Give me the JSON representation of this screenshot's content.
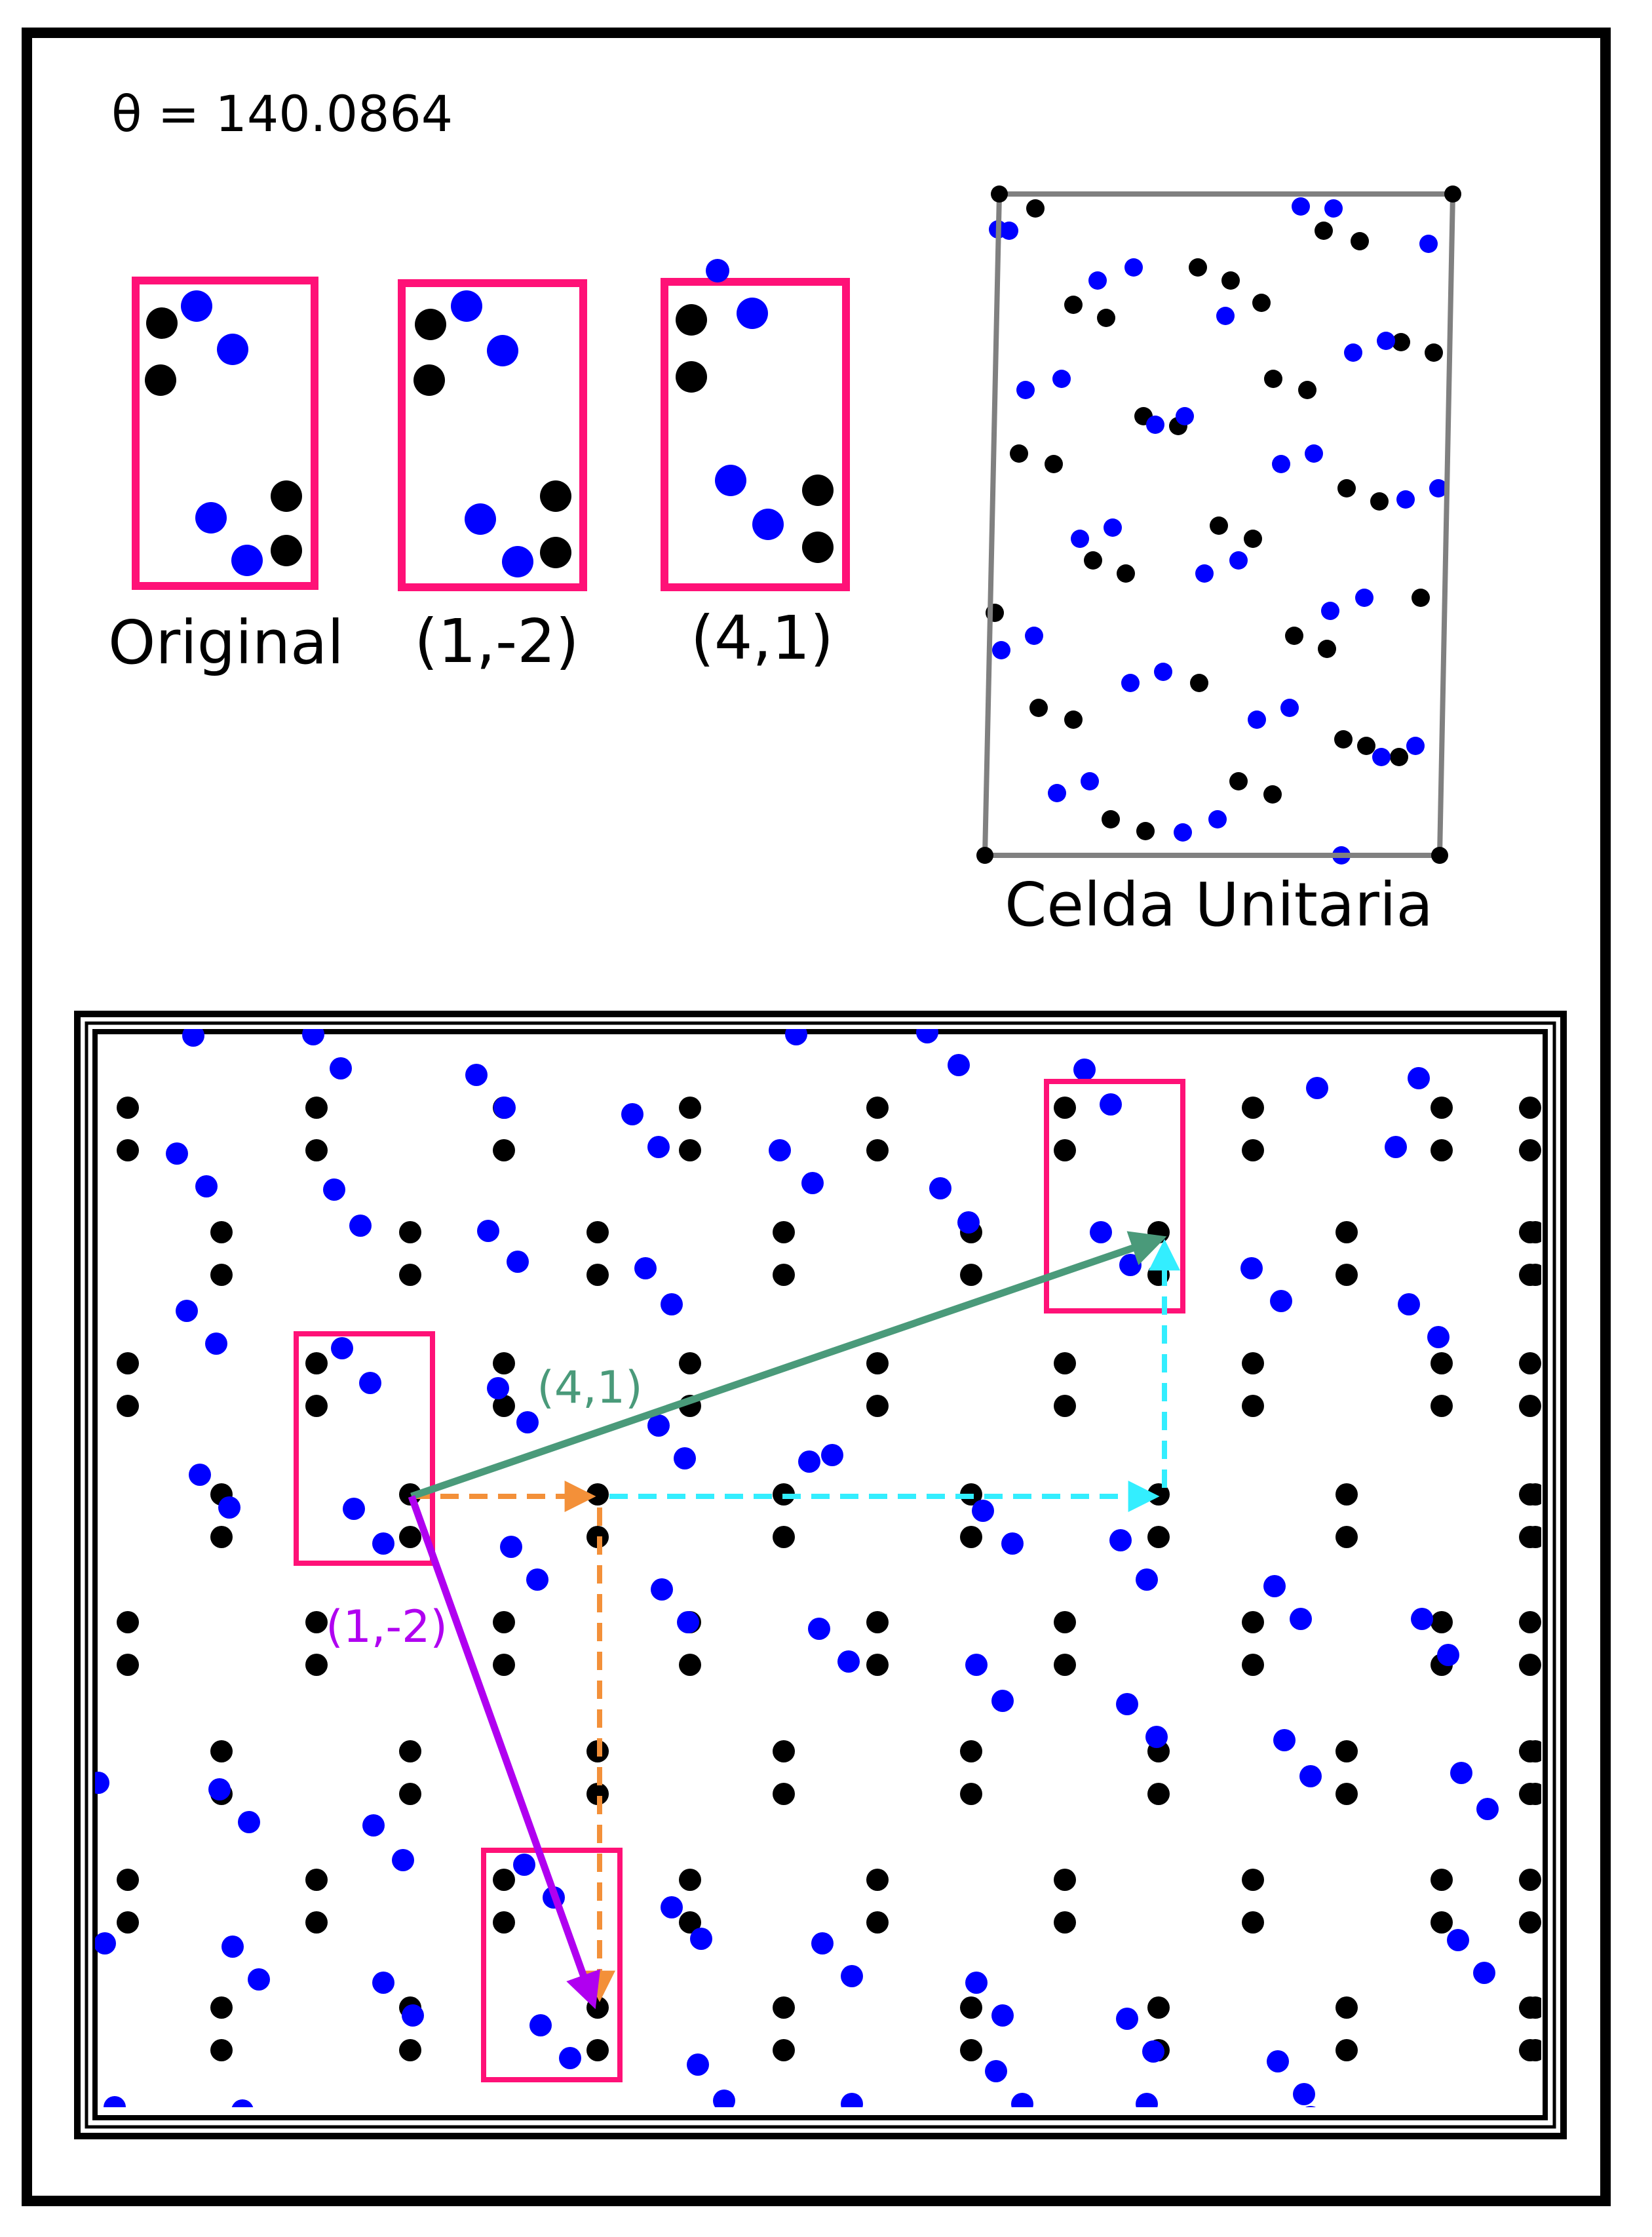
{
  "theta": "θ = 140.0864",
  "motifs": {
    "original": "Original",
    "v1": "(1,-2)",
    "v2": "(4,1)"
  },
  "unit_cell": {
    "label": "Celda Unitaria"
  },
  "lattice": {
    "vector_a": "(4,1)",
    "vector_b": "(1,-2)"
  },
  "colors": {
    "black_atom": "#000000",
    "blue_atom": "#0000ff",
    "motif_box": "#ff1177",
    "vector_a": "#4a9a7a",
    "vector_b": "#b000f0",
    "steps_short": "#f39039",
    "steps_long": "#33eeff",
    "cell_frame": "#808080"
  }
}
